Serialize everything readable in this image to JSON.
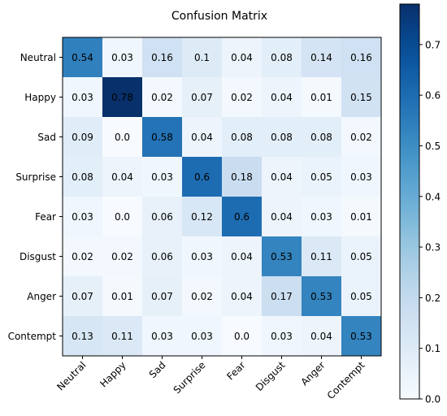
{
  "chart_data": {
    "type": "heatmap",
    "title": "Confusion Matrix",
    "xlabel": "",
    "ylabel": "",
    "categories": [
      "Neutral",
      "Happy",
      "Sad",
      "Surprise",
      "Fear",
      "Disgust",
      "Anger",
      "Contempt"
    ],
    "values": [
      [
        0.54,
        0.03,
        0.16,
        0.1,
        0.04,
        0.08,
        0.14,
        0.16
      ],
      [
        0.03,
        0.78,
        0.02,
        0.07,
        0.02,
        0.04,
        0.01,
        0.15
      ],
      [
        0.09,
        0.0,
        0.58,
        0.04,
        0.08,
        0.08,
        0.08,
        0.02
      ],
      [
        0.08,
        0.04,
        0.03,
        0.6,
        0.18,
        0.04,
        0.05,
        0.03
      ],
      [
        0.03,
        0.0,
        0.06,
        0.12,
        0.6,
        0.04,
        0.03,
        0.01
      ],
      [
        0.02,
        0.02,
        0.06,
        0.03,
        0.04,
        0.53,
        0.11,
        0.05
      ],
      [
        0.07,
        0.01,
        0.07,
        0.02,
        0.04,
        0.17,
        0.53,
        0.05
      ],
      [
        0.13,
        0.11,
        0.03,
        0.03,
        0.0,
        0.03,
        0.04,
        0.53
      ]
    ],
    "value_labels": [
      [
        "0.54",
        "0.03",
        "0.16",
        "0.1",
        "0.04",
        "0.08",
        "0.14",
        "0.16"
      ],
      [
        "0.03",
        "0.78",
        "0.02",
        "0.07",
        "0.02",
        "0.04",
        "0.01",
        "0.15"
      ],
      [
        "0.09",
        "0.0",
        "0.58",
        "0.04",
        "0.08",
        "0.08",
        "0.08",
        "0.02"
      ],
      [
        "0.08",
        "0.04",
        "0.03",
        "0.6",
        "0.18",
        "0.04",
        "0.05",
        "0.03"
      ],
      [
        "0.03",
        "0.0",
        "0.06",
        "0.12",
        "0.6",
        "0.04",
        "0.03",
        "0.01"
      ],
      [
        "0.02",
        "0.02",
        "0.06",
        "0.03",
        "0.04",
        "0.53",
        "0.11",
        "0.05"
      ],
      [
        "0.07",
        "0.01",
        "0.07",
        "0.02",
        "0.04",
        "0.17",
        "0.53",
        "0.05"
      ],
      [
        "0.13",
        "0.11",
        "0.03",
        "0.03",
        "0.0",
        "0.03",
        "0.04",
        "0.53"
      ]
    ],
    "colormap": "Blues",
    "color_range": [
      0.0,
      0.78
    ],
    "colorbar_ticks": [
      "0.0",
      "0.1",
      "0.2",
      "0.3",
      "0.4",
      "0.5",
      "0.6",
      "0.7"
    ],
    "grid": false,
    "legend": "colorbar-right"
  }
}
